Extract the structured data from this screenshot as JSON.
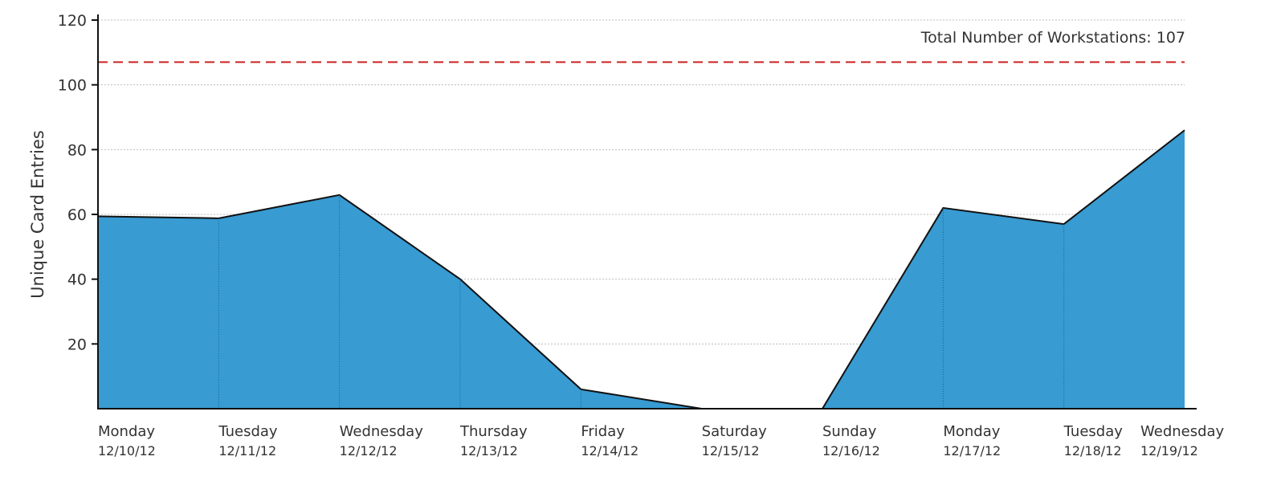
{
  "chart_data": {
    "type": "area",
    "title": "",
    "xlabel": "",
    "ylabel": "Unique Card Entries",
    "ylim": [
      0,
      120
    ],
    "yticks": [
      20,
      40,
      60,
      80,
      100,
      120
    ],
    "grid": true,
    "categories": [
      {
        "day": "Monday",
        "date": "12/10/12"
      },
      {
        "day": "Tuesday",
        "date": "12/11/12"
      },
      {
        "day": "Wednesday",
        "date": "12/12/12"
      },
      {
        "day": "Thursday",
        "date": "12/13/12"
      },
      {
        "day": "Friday",
        "date": "12/14/12"
      },
      {
        "day": "Saturday",
        "date": "12/15/12"
      },
      {
        "day": "Sunday",
        "date": "12/16/12"
      },
      {
        "day": "Monday",
        "date": "12/17/12"
      },
      {
        "day": "Tuesday",
        "date": "12/18/12"
      },
      {
        "day": "Wednesday",
        "date": "12/19/12"
      }
    ],
    "values": [
      59.4,
      58.8,
      66,
      40,
      6,
      0,
      0,
      62,
      57,
      86
    ],
    "reference_line": {
      "value": 107,
      "label": "Total Number of Workstations: 107",
      "color": "#cc2222",
      "style": "dashed"
    },
    "fill_color": "#389bd2",
    "line_color": "#111111"
  }
}
